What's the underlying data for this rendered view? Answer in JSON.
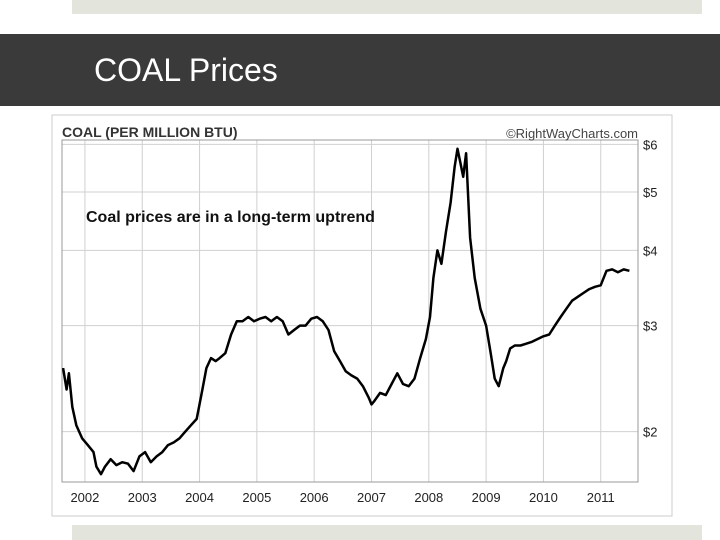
{
  "slide": {
    "title": "COAL Prices"
  },
  "chart_data": {
    "type": "line",
    "title": "COAL (PER MILLION BTU)",
    "copyright": "©RightWayCharts.com",
    "annotation": "Coal prices are in a long-term uptrend",
    "y_scale": "log",
    "ylim": [
      1.65,
      6.1
    ],
    "xlim": [
      2001.6,
      2011.65
    ],
    "y_ticks": [
      {
        "value": 6,
        "label": "$6"
      },
      {
        "value": 5,
        "label": "$5"
      },
      {
        "value": 4,
        "label": "$4"
      },
      {
        "value": 3,
        "label": "$3"
      },
      {
        "value": 2,
        "label": "$2"
      }
    ],
    "x_ticks": [
      {
        "value": 2002,
        "label": "2002"
      },
      {
        "value": 2003,
        "label": "2003"
      },
      {
        "value": 2004,
        "label": "2004"
      },
      {
        "value": 2005,
        "label": "2005"
      },
      {
        "value": 2006,
        "label": "2006"
      },
      {
        "value": 2007,
        "label": "2007"
      },
      {
        "value": 2008,
        "label": "2008"
      },
      {
        "value": 2009,
        "label": "2009"
      },
      {
        "value": 2010,
        "label": "2010"
      },
      {
        "value": 2011,
        "label": "2011"
      }
    ],
    "grid": true,
    "series": [
      {
        "name": "Coal price",
        "color": "#000000",
        "x": [
          2001.62,
          2001.68,
          2001.72,
          2001.78,
          2001.85,
          2001.95,
          2002.05,
          2002.15,
          2002.2,
          2002.28,
          2002.35,
          2002.45,
          2002.55,
          2002.65,
          2002.75,
          2002.85,
          2002.95,
          2003.05,
          2003.15,
          2003.25,
          2003.35,
          2003.45,
          2003.55,
          2003.65,
          2003.75,
          2003.85,
          2003.95,
          2004.05,
          2004.12,
          2004.2,
          2004.28,
          2004.35,
          2004.45,
          2004.55,
          2004.65,
          2004.75,
          2004.85,
          2004.95,
          2005.05,
          2005.15,
          2005.25,
          2005.35,
          2005.45,
          2005.55,
          2005.65,
          2005.75,
          2005.85,
          2005.95,
          2006.05,
          2006.15,
          2006.25,
          2006.35,
          2006.45,
          2006.55,
          2006.65,
          2006.75,
          2006.85,
          2006.95,
          2007.0,
          2007.05,
          2007.15,
          2007.25,
          2007.35,
          2007.45,
          2007.55,
          2007.65,
          2007.75,
          2007.85,
          2007.95,
          2008.02,
          2008.08,
          2008.15,
          2008.22,
          2008.3,
          2008.38,
          2008.45,
          2008.5,
          2008.55,
          2008.6,
          2008.65,
          2008.72,
          2008.8,
          2008.9,
          2009.0,
          2009.08,
          2009.15,
          2009.22,
          2009.3,
          2009.35,
          2009.42,
          2009.5,
          2009.6,
          2009.7,
          2009.8,
          2009.9,
          2010.0,
          2010.1,
          2010.2,
          2010.3,
          2010.4,
          2010.5,
          2010.6,
          2010.7,
          2010.8,
          2010.9,
          2011.0,
          2011.1,
          2011.2,
          2011.3,
          2011.4,
          2011.5
        ],
        "values": [
          2.55,
          2.35,
          2.5,
          2.2,
          2.05,
          1.95,
          1.9,
          1.85,
          1.75,
          1.7,
          1.75,
          1.8,
          1.76,
          1.78,
          1.77,
          1.72,
          1.82,
          1.85,
          1.78,
          1.82,
          1.85,
          1.9,
          1.92,
          1.95,
          2.0,
          2.05,
          2.1,
          2.35,
          2.55,
          2.65,
          2.62,
          2.65,
          2.7,
          2.9,
          3.05,
          3.05,
          3.1,
          3.05,
          3.08,
          3.1,
          3.05,
          3.1,
          3.05,
          2.9,
          2.95,
          3.0,
          3.0,
          3.08,
          3.1,
          3.05,
          2.95,
          2.72,
          2.62,
          2.52,
          2.48,
          2.45,
          2.38,
          2.28,
          2.22,
          2.25,
          2.32,
          2.3,
          2.4,
          2.5,
          2.4,
          2.38,
          2.45,
          2.65,
          2.85,
          3.1,
          3.6,
          4.0,
          3.8,
          4.3,
          4.8,
          5.5,
          5.9,
          5.6,
          5.3,
          5.8,
          4.2,
          3.6,
          3.2,
          3.0,
          2.7,
          2.45,
          2.38,
          2.55,
          2.62,
          2.75,
          2.78,
          2.78,
          2.8,
          2.82,
          2.85,
          2.88,
          2.9,
          3.0,
          3.1,
          3.2,
          3.3,
          3.35,
          3.4,
          3.45,
          3.48,
          3.5,
          3.7,
          3.72,
          3.68,
          3.72,
          3.7
        ]
      }
    ]
  }
}
